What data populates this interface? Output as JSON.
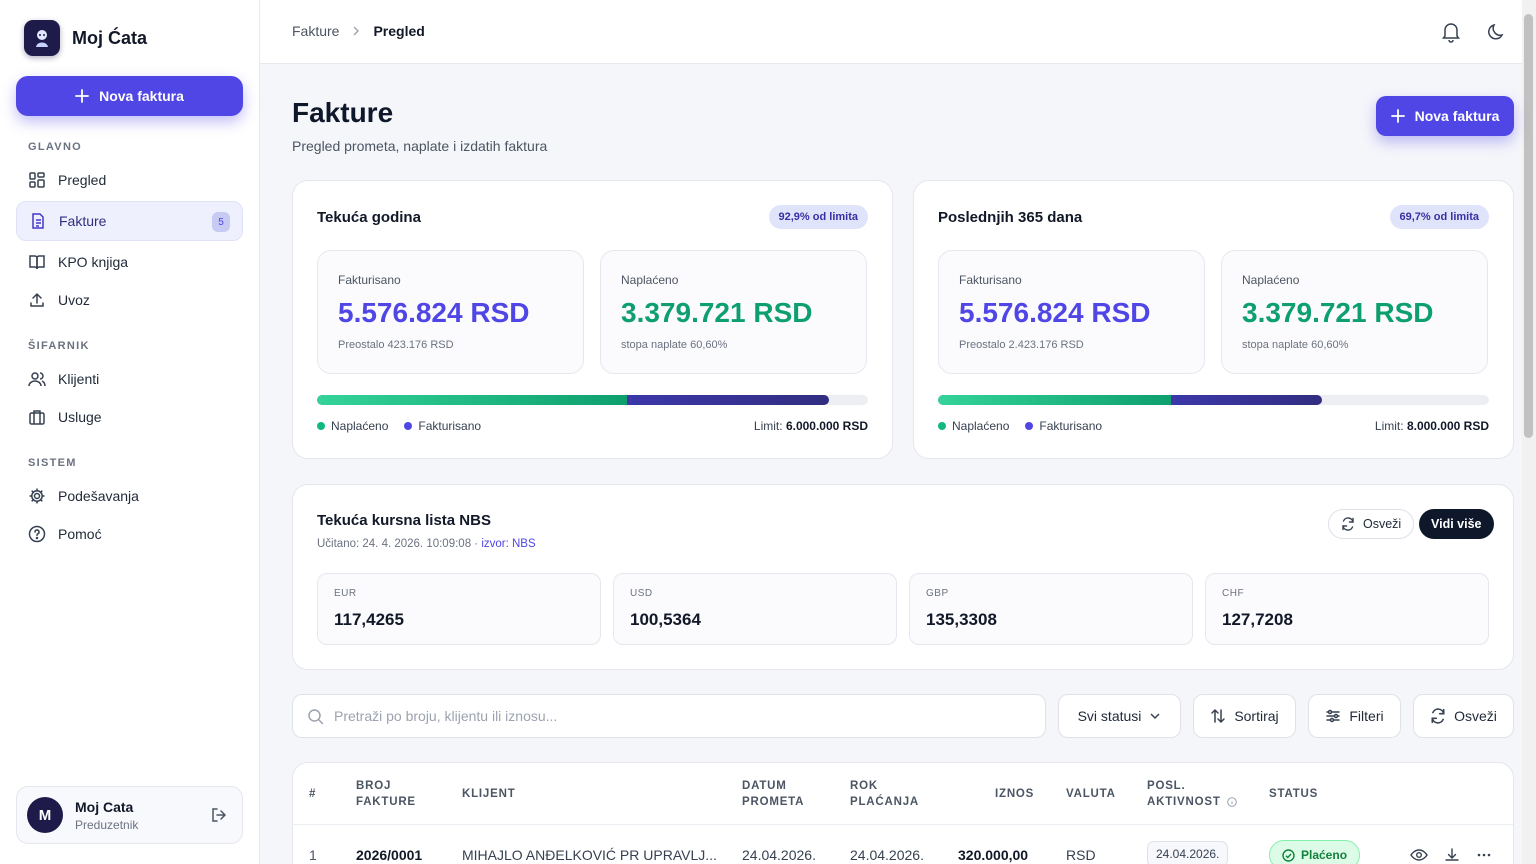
{
  "app": {
    "name": "Moj Ćata"
  },
  "sidebar": {
    "new_button": "Nova faktura",
    "sections": [
      "GLAVNO",
      "ŠIFARNIK",
      "SISTEM"
    ],
    "items": [
      {
        "label": "Pregled",
        "icon": "dashboard-icon"
      },
      {
        "label": "Fakture",
        "icon": "document-icon",
        "badge": "5",
        "active": true
      },
      {
        "label": "KPO knjiga",
        "icon": "book-icon"
      },
      {
        "label": "Uvoz",
        "icon": "upload-icon"
      },
      {
        "label": "Klijenti",
        "icon": "users-icon"
      },
      {
        "label": "Usluge",
        "icon": "briefcase-icon"
      },
      {
        "label": "Podešavanja",
        "icon": "gear-icon"
      },
      {
        "label": "Pomoć",
        "icon": "help-icon"
      }
    ],
    "user": {
      "initial": "M",
      "name": "Moj Cata",
      "role": "Preduzetnik"
    }
  },
  "topbar": {
    "breadcrumb": [
      "Fakture",
      "Pregled"
    ]
  },
  "page": {
    "title": "Fakture",
    "subtitle": "Pregled prometa, naplate i izdatih faktura",
    "new_button": "Nova faktura"
  },
  "summary_cards": [
    {
      "title": "Tekuća godina",
      "badge": "92,9% od limita",
      "invoiced_label": "Fakturisano",
      "invoiced_value": "5.576.824 RSD",
      "invoiced_note": "Preostalo 423.176 RSD",
      "collected_label": "Naplaćeno",
      "collected_value": "3.379.721 RSD",
      "collected_note": "stopa naplate 60,60%",
      "progress_collected": 0.563,
      "progress_invoiced": 0.929,
      "legend_collected": "Naplaćeno",
      "legend_invoiced": "Fakturisano",
      "limit_label": "Limit:",
      "limit_value": "6.000.000 RSD"
    },
    {
      "title": "Poslednjih 365 dana",
      "badge": "69,7% od limita",
      "invoiced_label": "Fakturisano",
      "invoiced_value": "5.576.824 RSD",
      "invoiced_note": "Preostalo 2.423.176 RSD",
      "collected_label": "Naplaćeno",
      "collected_value": "3.379.721 RSD",
      "collected_note": "stopa naplate 60,60%",
      "progress_collected": 0.422,
      "progress_invoiced": 0.697,
      "legend_collected": "Naplaćeno",
      "legend_invoiced": "Fakturisano",
      "limit_label": "Limit:",
      "limit_value": "8.000.000 RSD"
    }
  ],
  "rates": {
    "title": "Tekuća kursna lista NBS",
    "loaded": "Učitano: 24. 4. 2026. 10:09:08 · ",
    "source": "izvor: NBS",
    "refresh_button": "Osveži",
    "more_button": "Vidi više",
    "items": [
      {
        "code": "EUR",
        "value": "117,4265"
      },
      {
        "code": "USD",
        "value": "100,5364"
      },
      {
        "code": "GBP",
        "value": "135,3308"
      },
      {
        "code": "CHF",
        "value": "127,7208"
      }
    ]
  },
  "filters": {
    "search_placeholder": "Pretraži po broju, klijentu ili iznosu...",
    "status_select": "Svi statusi",
    "sort_button": "Sortiraj",
    "filter_button": "Filteri",
    "refresh_button": "Osveži"
  },
  "table": {
    "headers": {
      "num": "#",
      "number": [
        "BROJ",
        "FAKTURE"
      ],
      "client": "KLIJENT",
      "date": [
        "DATUM",
        "PROMETA"
      ],
      "due": [
        "ROK",
        "PLAĆANJA"
      ],
      "amount": "IZNOS",
      "currency": "VALUTA",
      "activity": [
        "POSL.",
        "AKTIVNOST"
      ],
      "status": "STATUS"
    },
    "rows": [
      {
        "num": "1",
        "number": "2026/0001",
        "client": "MIHAJLO ANĐELKOVIĆ PR UPRAVLJ...",
        "date": "24.04.2026.",
        "due": "24.04.2026.",
        "amount": "320.000,00",
        "currency": "RSD",
        "activity": "24.04.2026.",
        "status": "Plaćeno"
      }
    ]
  },
  "colors": {
    "accent": "#4f46e5",
    "success": "#0e9f6e",
    "dark": "#0f172a"
  }
}
